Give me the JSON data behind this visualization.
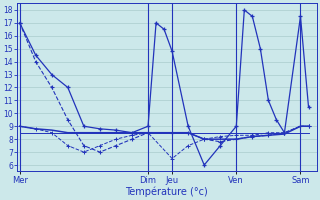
{
  "xlabel": "Température (°c)",
  "bg_color": "#cce8ea",
  "grid_color": "#aacccc",
  "line_color": "#2233bb",
  "ylim": [
    5.5,
    18.5
  ],
  "yticks": [
    6,
    7,
    8,
    9,
    10,
    11,
    12,
    13,
    14,
    15,
    16,
    17,
    18
  ],
  "day_labels": [
    "Mer",
    "Dim",
    "Jeu",
    "Ven",
    "Sam"
  ],
  "day_positions": [
    0,
    16,
    19,
    27,
    35
  ],
  "xlim": [
    -0.3,
    37
  ],
  "series1": {
    "x": [
      0,
      2,
      4,
      6,
      8,
      10,
      12,
      14,
      16,
      17,
      18,
      19,
      21,
      23,
      25,
      27,
      28,
      29,
      30,
      31,
      32,
      33,
      35,
      36
    ],
    "y": [
      17,
      14.5,
      13,
      12,
      9,
      8.8,
      8.7,
      8.5,
      9,
      17,
      16.5,
      14.8,
      9,
      6,
      7.5,
      9,
      18,
      17.5,
      15,
      11,
      9.5,
      8.5,
      17.5,
      10.5
    ]
  },
  "series2": {
    "x": [
      0,
      2,
      4,
      6,
      8,
      10,
      12,
      14,
      16,
      19,
      21,
      23,
      25,
      27,
      29,
      31,
      33,
      35,
      36
    ],
    "y": [
      9,
      8.8,
      8.7,
      8.5,
      8.5,
      8.5,
      8.5,
      8.5,
      8.5,
      8.5,
      8.5,
      8.0,
      8.0,
      8.0,
      8.2,
      8.3,
      8.4,
      9.0,
      9.0
    ]
  },
  "series3": {
    "x": [
      0,
      2,
      4,
      6,
      8,
      10,
      12,
      14,
      16,
      19,
      21,
      23,
      25,
      27,
      29,
      31,
      33,
      35,
      36
    ],
    "y": [
      9,
      8.8,
      8.5,
      7.5,
      7.0,
      7.5,
      8.0,
      8.3,
      8.5,
      6.5,
      7.5,
      8.0,
      8.2,
      8.3,
      8.3,
      8.5,
      8.5,
      9.0,
      9.0
    ]
  },
  "series4": {
    "x": [
      0,
      8,
      16,
      19,
      27,
      35,
      36
    ],
    "y": [
      8.5,
      8.5,
      8.5,
      8.5,
      8.5,
      8.5,
      8.5
    ]
  },
  "series5": {
    "x": [
      0,
      2,
      4,
      6,
      8,
      10,
      12,
      14,
      16,
      19,
      21,
      23,
      25,
      27,
      29,
      31,
      33,
      35,
      36
    ],
    "y": [
      17,
      14,
      12,
      9.5,
      7.5,
      7,
      7.5,
      8,
      8.5,
      8.5,
      8.5,
      8.0,
      7.8,
      8.0,
      8.2,
      8.3,
      8.5,
      9.0,
      9.0
    ]
  }
}
